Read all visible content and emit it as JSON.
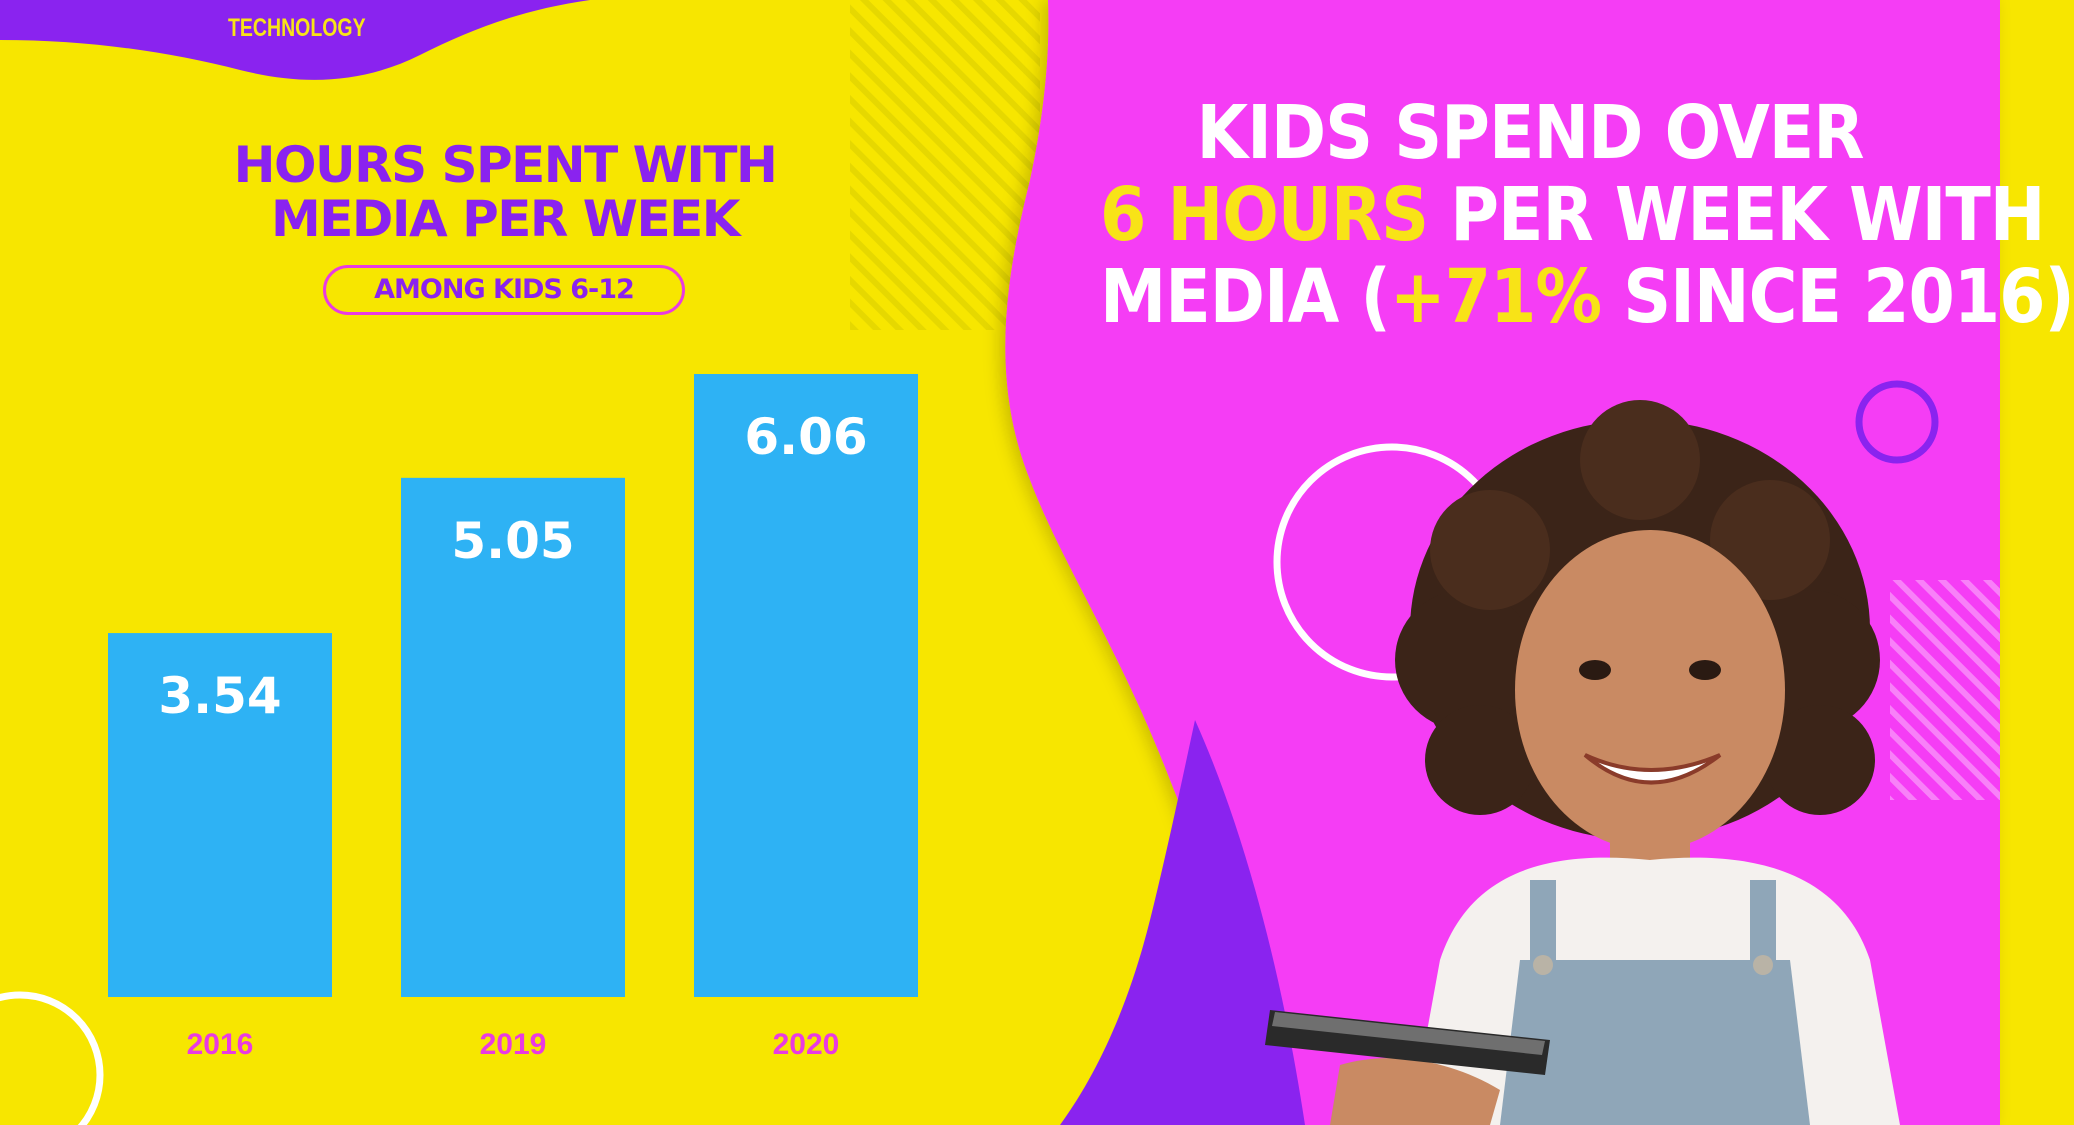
{
  "colors": {
    "yellow": "#f7e600",
    "magenta": "#f53cf5",
    "purple": "#8a23ef",
    "bar": "#2eb2f4",
    "white": "#ffffff",
    "label_pink": "#e93be2",
    "accent_yellow": "#f8e317"
  },
  "section_tag": "TECHNOLOGY",
  "headline": {
    "line1": "KIDS SPEND OVER",
    "line2_accent": "6 HOURS",
    "line2_rest": " PER WEEK WITH",
    "line3_a": "MEDIA (",
    "line3_accent": "+71%",
    "line3_b": " SINCE 2016)"
  },
  "chart_data": {
    "type": "bar",
    "title_line1": "HOURS SPENT WITH",
    "title_line2": "MEDIA PER WEEK",
    "subtitle": "AMONG KIDS 6-12",
    "categories": [
      "2016",
      "2019",
      "2020"
    ],
    "values": [
      3.54,
      5.05,
      6.06
    ],
    "value_labels": [
      "3.54",
      "5.05",
      "6.06"
    ],
    "ylim": [
      0,
      6.5
    ],
    "grid": false,
    "legend": "none"
  },
  "photo": {
    "icons": [
      "child-photo",
      "smartphone-icon"
    ]
  }
}
